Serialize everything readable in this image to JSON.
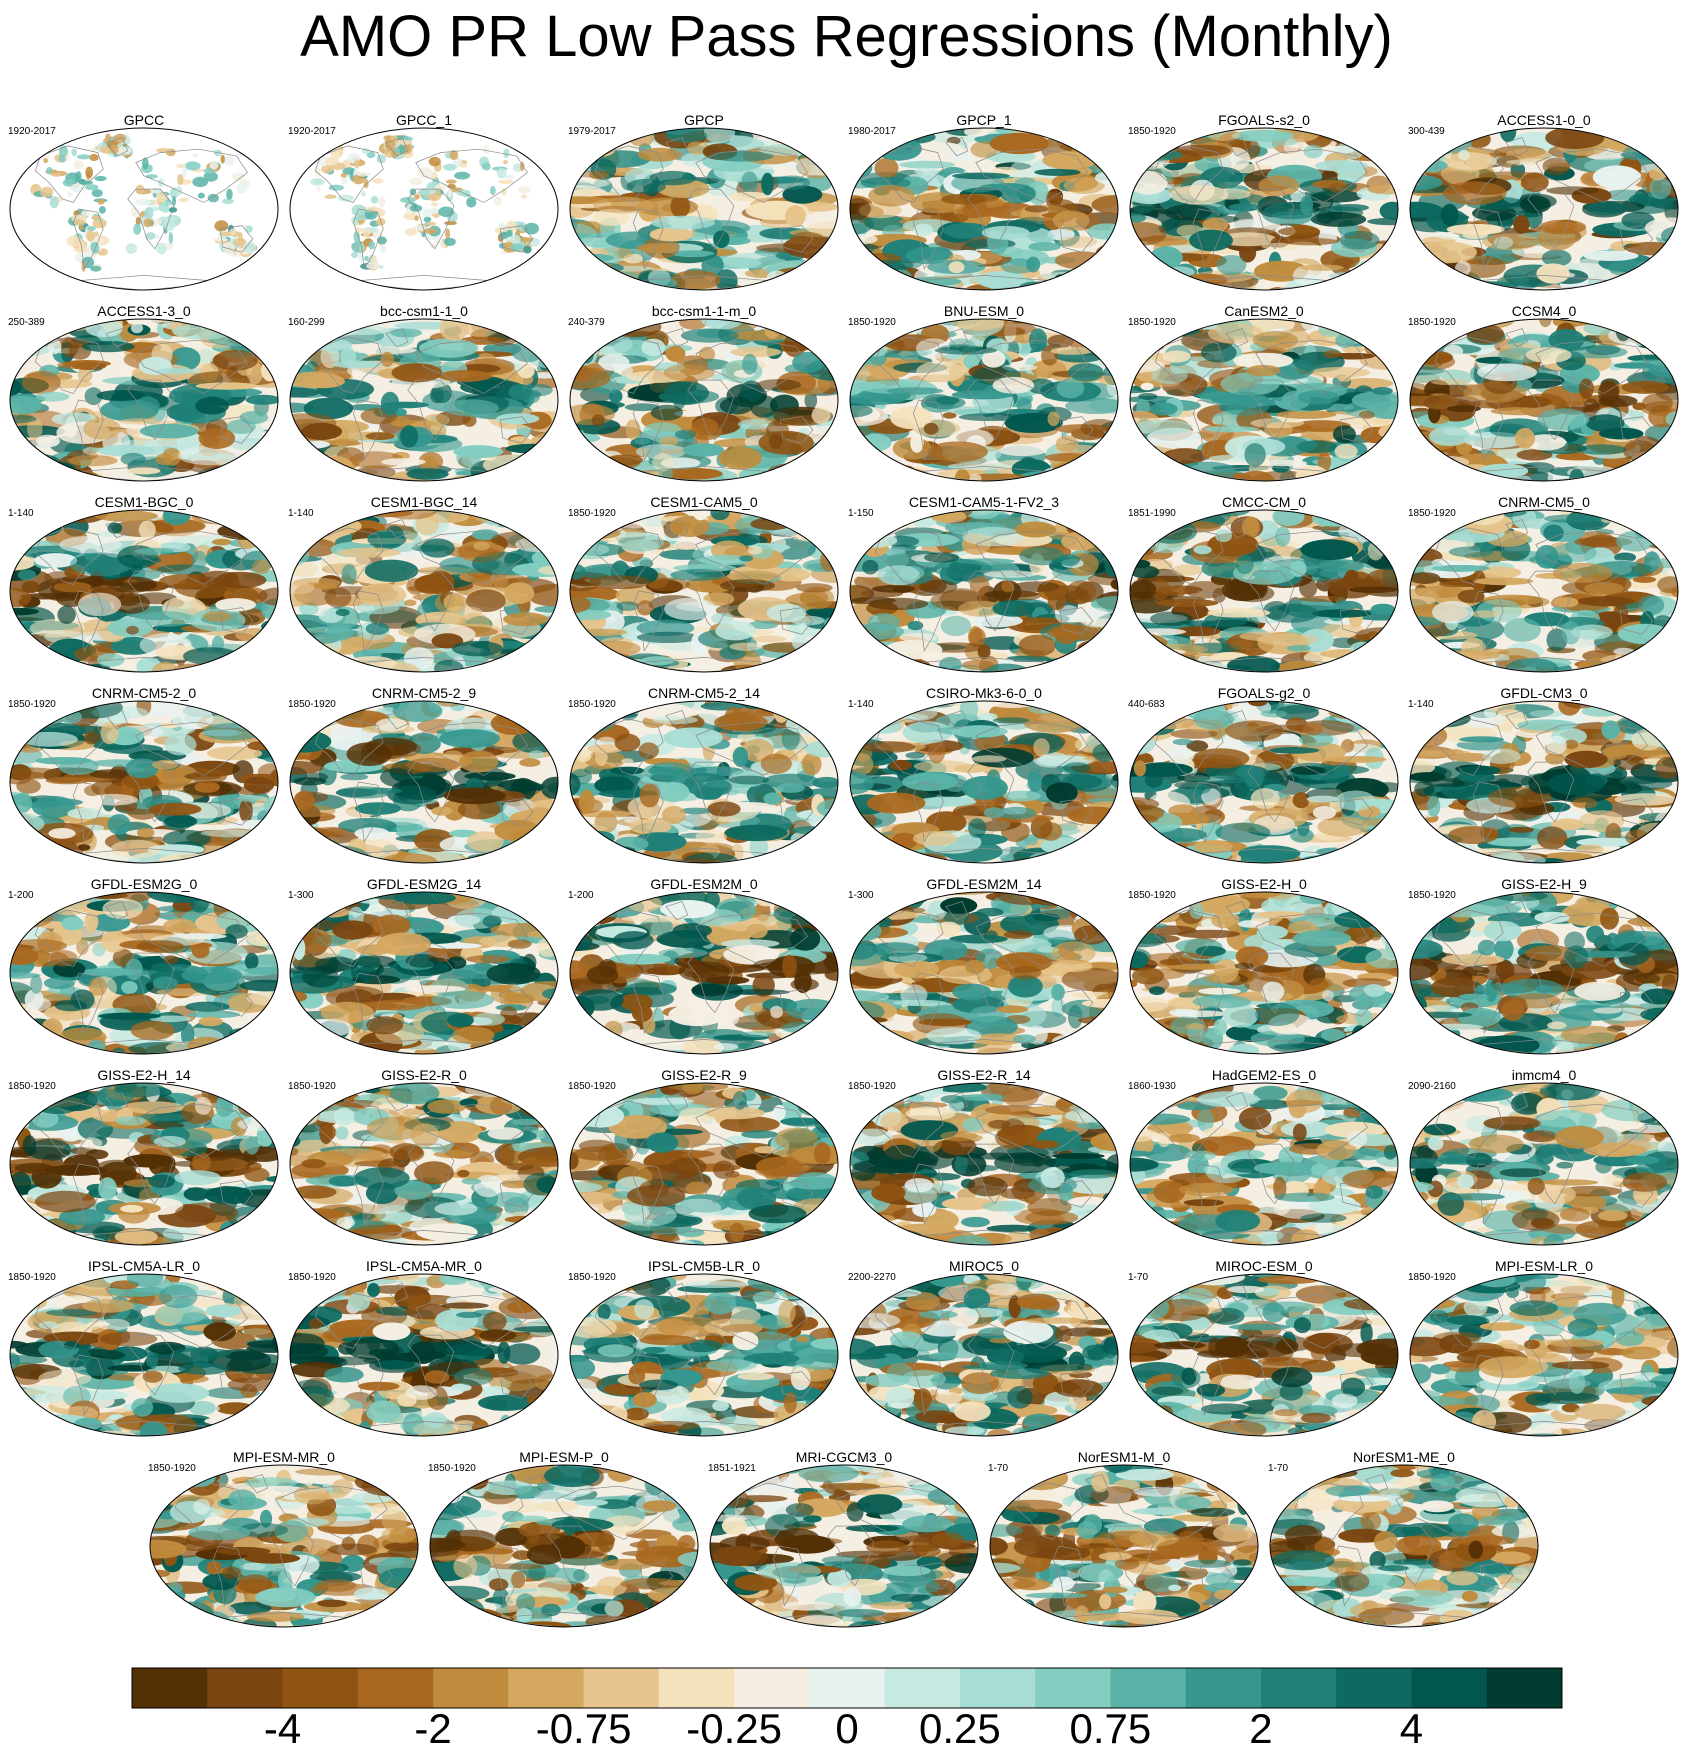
{
  "chart_data": {
    "type": "heatmap",
    "title": "AMO PR Low Pass Regressions (Monthly)",
    "projection": "robinson-like global maps, one per dataset",
    "colormap": {
      "colors": [
        "#543005",
        "#7a4510",
        "#8f5412",
        "#a9681f",
        "#c08b3c",
        "#d4a861",
        "#e6c48b",
        "#f4e2bd",
        "#f5efe3",
        "#e8f2f0",
        "#c7eae3",
        "#a8ddd4",
        "#83cdc1",
        "#5bb3a8",
        "#35978f",
        "#1f8178",
        "#0c6a60",
        "#01574e",
        "#003c30"
      ],
      "tick_labels": [
        "-4",
        "-2",
        "-0.75",
        "-0.25",
        "0",
        "0.25",
        "0.75",
        "2",
        "4"
      ]
    },
    "panels": [
      {
        "name": "GPCC",
        "years": "1920-2017"
      },
      {
        "name": "GPCC_1",
        "years": "1920-2017"
      },
      {
        "name": "GPCP",
        "years": "1979-2017"
      },
      {
        "name": "GPCP_1",
        "years": "1980-2017"
      },
      {
        "name": "FGOALS-s2_0",
        "years": "1850-1920"
      },
      {
        "name": "ACCESS1-0_0",
        "years": "300-439"
      },
      {
        "name": "ACCESS1-3_0",
        "years": "250-389"
      },
      {
        "name": "bcc-csm1-1_0",
        "years": "160-299"
      },
      {
        "name": "bcc-csm1-1-m_0",
        "years": "240-379"
      },
      {
        "name": "BNU-ESM_0",
        "years": "1850-1920"
      },
      {
        "name": "CanESM2_0",
        "years": "1850-1920"
      },
      {
        "name": "CCSM4_0",
        "years": "1850-1920"
      },
      {
        "name": "CESM1-BGC_0",
        "years": "1-140"
      },
      {
        "name": "CESM1-BGC_14",
        "years": "1-140"
      },
      {
        "name": "CESM1-CAM5_0",
        "years": "1850-1920"
      },
      {
        "name": "CESM1-CAM5-1-FV2_3",
        "years": "1-150"
      },
      {
        "name": "CMCC-CM_0",
        "years": "1851-1990"
      },
      {
        "name": "CNRM-CM5_0",
        "years": "1850-1920"
      },
      {
        "name": "CNRM-CM5-2_0",
        "years": "1850-1920"
      },
      {
        "name": "CNRM-CM5-2_9",
        "years": "1850-1920"
      },
      {
        "name": "CNRM-CM5-2_14",
        "years": "1850-1920"
      },
      {
        "name": "CSIRO-Mk3-6-0_0",
        "years": "1-140"
      },
      {
        "name": "FGOALS-g2_0",
        "years": "440-683"
      },
      {
        "name": "GFDL-CM3_0",
        "years": "1-140"
      },
      {
        "name": "GFDL-ESM2G_0",
        "years": "1-200"
      },
      {
        "name": "GFDL-ESM2G_14",
        "years": "1-300"
      },
      {
        "name": "GFDL-ESM2M_0",
        "years": "1-200"
      },
      {
        "name": "GFDL-ESM2M_14",
        "years": "1-300"
      },
      {
        "name": "GISS-E2-H_0",
        "years": "1850-1920"
      },
      {
        "name": "GISS-E2-H_9",
        "years": "1850-1920"
      },
      {
        "name": "GISS-E2-H_14",
        "years": "1850-1920"
      },
      {
        "name": "GISS-E2-R_0",
        "years": "1850-1920"
      },
      {
        "name": "GISS-E2-R_9",
        "years": "1850-1920"
      },
      {
        "name": "GISS-E2-R_14",
        "years": "1850-1920"
      },
      {
        "name": "HadGEM2-ES_0",
        "years": "1860-1930"
      },
      {
        "name": "inmcm4_0",
        "years": "2090-2160"
      },
      {
        "name": "IPSL-CM5A-LR_0",
        "years": "1850-1920"
      },
      {
        "name": "IPSL-CM5A-MR_0",
        "years": "1850-1920"
      },
      {
        "name": "IPSL-CM5B-LR_0",
        "years": "1850-1920"
      },
      {
        "name": "MIROC5_0",
        "years": "2200-2270"
      },
      {
        "name": "MIROC-ESM_0",
        "years": "1-70"
      },
      {
        "name": "MPI-ESM-LR_0",
        "years": "1850-1920"
      },
      {
        "name": "MPI-ESM-MR_0",
        "years": "1850-1920"
      },
      {
        "name": "MPI-ESM-P_0",
        "years": "1850-1920"
      },
      {
        "name": "MRI-CGCM3_0",
        "years": "1851-1921"
      },
      {
        "name": "NorESM1-M_0",
        "years": "1-70"
      },
      {
        "name": "NorESM1-ME_0",
        "years": "1-70"
      }
    ]
  }
}
